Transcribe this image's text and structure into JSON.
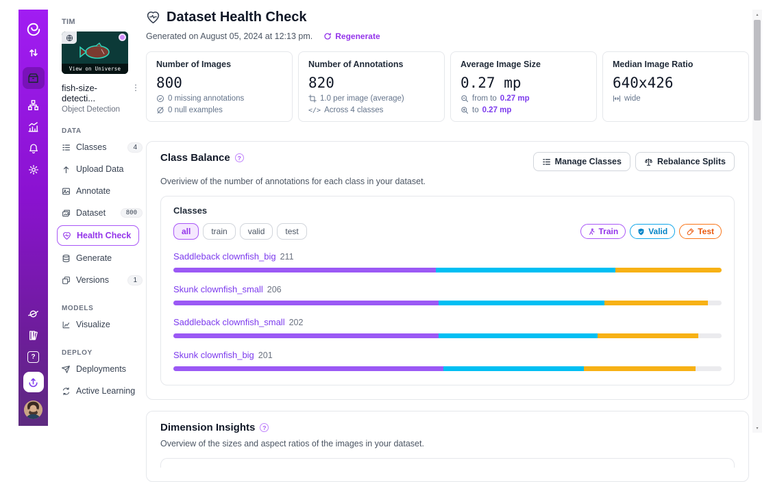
{
  "colors": {
    "accent_purple": "#9333ea",
    "link_purple": "#7c3aed",
    "rail_top": "#a11df2",
    "rail_bottom": "#5d2b7f",
    "segments": {
      "train": "#9b59f5",
      "valid": "#00bff3",
      "test": "#f7b115",
      "rest": "#ebebee"
    }
  },
  "glyphs": {
    "kebab": "⋮",
    "question": "?",
    "code": "</>",
    "scroll_up": "▴",
    "scroll_down": "▾"
  },
  "sidebar": {
    "workspace": "TIM",
    "thumbnail_caption": "View on Universe",
    "project_name": "fish-size-detecti...",
    "project_type": "Object Detection",
    "sections": [
      {
        "label": "DATA",
        "items": [
          {
            "label": "Classes",
            "badge": "4",
            "icon": "numbered-list"
          },
          {
            "label": "Upload Data",
            "icon": "upload-arrow"
          },
          {
            "label": "Annotate",
            "icon": "annotate-image"
          },
          {
            "label": "Dataset",
            "badge": "800",
            "icon": "image-stack"
          },
          {
            "label": "Health Check",
            "selected": true,
            "icon": "heart-pulse"
          },
          {
            "label": "Generate",
            "icon": "layers-database"
          },
          {
            "label": "Versions",
            "badge": "1",
            "icon": "copy-folder"
          }
        ]
      },
      {
        "label": "MODELS",
        "items": [
          {
            "label": "Visualize",
            "icon": "line-chart"
          }
        ]
      },
      {
        "label": "DEPLOY",
        "items": [
          {
            "label": "Deployments",
            "icon": "paper-plane"
          },
          {
            "label": "Active Learning",
            "icon": "cycle"
          }
        ]
      }
    ]
  },
  "header": {
    "title": "Dataset Health Check",
    "generated": "Generated on August 05, 2024 at 12:13 pm.",
    "regenerate": "Regenerate"
  },
  "stats": [
    {
      "label": "Number of Images",
      "value": "800",
      "lines": [
        {
          "icon": "check-circle",
          "text": "0 missing annotations"
        },
        {
          "icon": "null-set",
          "text": "0 null examples"
        }
      ]
    },
    {
      "label": "Number of Annotations",
      "value": "820",
      "lines": [
        {
          "icon": "crop",
          "text": "1.0 per image (average)"
        },
        {
          "icon": "code",
          "text": "Across 4 classes"
        }
      ]
    },
    {
      "label": "Average Image Size",
      "value": "0.27 mp",
      "lines": [
        {
          "icon": "zoom-out",
          "text": "from to",
          "highlight": "0.27 mp"
        },
        {
          "icon": "zoom-in",
          "text": "to",
          "highlight": "0.27 mp"
        }
      ]
    },
    {
      "label": "Median Image Ratio",
      "value": "640x426",
      "lines": [
        {
          "icon": "width-arrows",
          "text": "wide"
        }
      ]
    }
  ],
  "class_balance": {
    "title": "Class Balance",
    "description": "Overiview of the number of annotations for each class in your dataset.",
    "buttons": [
      {
        "icon": "numbered-list",
        "label": "Manage Classes"
      },
      {
        "icon": "balance-scale",
        "label": "Rebalance Splits"
      }
    ],
    "panel_title": "Classes",
    "filters": [
      "all",
      "train",
      "valid",
      "test"
    ],
    "active_filter": "all",
    "legend": [
      {
        "icon": "runner",
        "label": "Train"
      },
      {
        "icon": "shield-check",
        "label": "Valid"
      },
      {
        "icon": "test-tube",
        "label": "Test"
      }
    ],
    "classes": [
      {
        "name": "Saddleback clownfish_big",
        "count": 211,
        "segments": {
          "train": 47.9,
          "valid": 32.7,
          "test": 19.4,
          "rest": 0
        }
      },
      {
        "name": "Skunk clownfish_small",
        "count": 206,
        "segments": {
          "train": 48.4,
          "valid": 30.2,
          "test": 18.9,
          "rest": 2.5
        }
      },
      {
        "name": "Saddleback clownfish_small",
        "count": 202,
        "segments": {
          "train": 48.4,
          "valid": 29.0,
          "test": 18.3,
          "rest": 4.3
        }
      },
      {
        "name": "Skunk clownfish_big",
        "count": 201,
        "segments": {
          "train": 49.3,
          "valid": 25.6,
          "test": 20.4,
          "rest": 4.7
        }
      }
    ]
  },
  "dimension_insights": {
    "title": "Dimension Insights",
    "description": "Overview of the sizes and aspect ratios of the images in your dataset."
  }
}
